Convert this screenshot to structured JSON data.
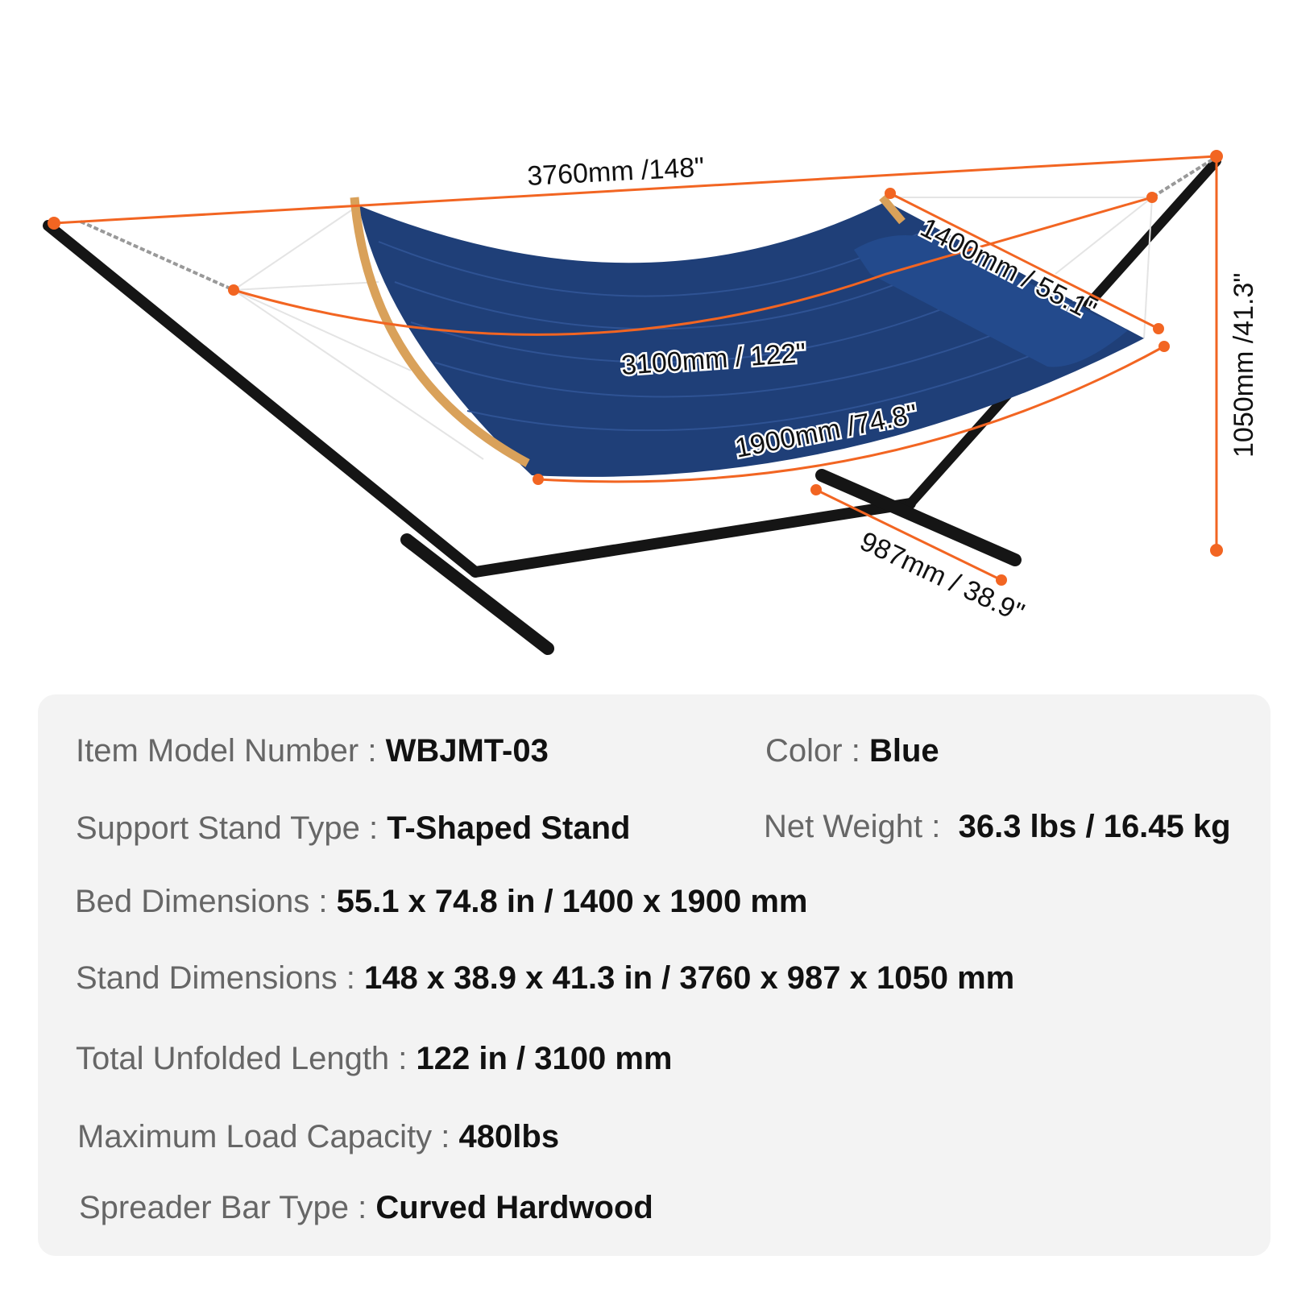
{
  "dimensions": {
    "stand_length": "3760mm /148\"",
    "bed_width": "1400mm / 55.1\"",
    "total_length": "3100mm / 122\"",
    "bed_length": "1900mm /74.8\"",
    "stand_width": "987mm / 38.9\"",
    "stand_height": "1050mm /41.3\""
  },
  "colors": {
    "accent": "#f26522",
    "fabric": "#1f3f78",
    "panel": "#f3f3f3"
  },
  "specs": [
    {
      "label": "Item Model Number",
      "sep": " : ",
      "value": "WBJMT-03"
    },
    {
      "label": "Color",
      "sep": " : ",
      "value": "Blue"
    },
    {
      "label": "Support Stand Type",
      "sep": " : ",
      "value": "T-Shaped Stand"
    },
    {
      "label": "Net Weight",
      "sep": " :  ",
      "value": "36.3 lbs / 16.45 kg"
    },
    {
      "label": "Bed Dimensions",
      "sep": " : ",
      "value": "55.1 x 74.8 in / 1400 x 1900 mm"
    },
    {
      "label": "Stand Dimensions",
      "sep": " : ",
      "value": "148 x 38.9 x 41.3 in / 3760 x 987 x 1050 mm"
    },
    {
      "label": "Total Unfolded Length",
      "sep": " : ",
      "value": "122 in / 3100 mm"
    },
    {
      "label": "Maximum Load Capacity",
      "sep": " : ",
      "value": "480lbs"
    },
    {
      "label": "Spreader Bar Type",
      "sep": " : ",
      "value": "Curved Hardwood"
    }
  ]
}
